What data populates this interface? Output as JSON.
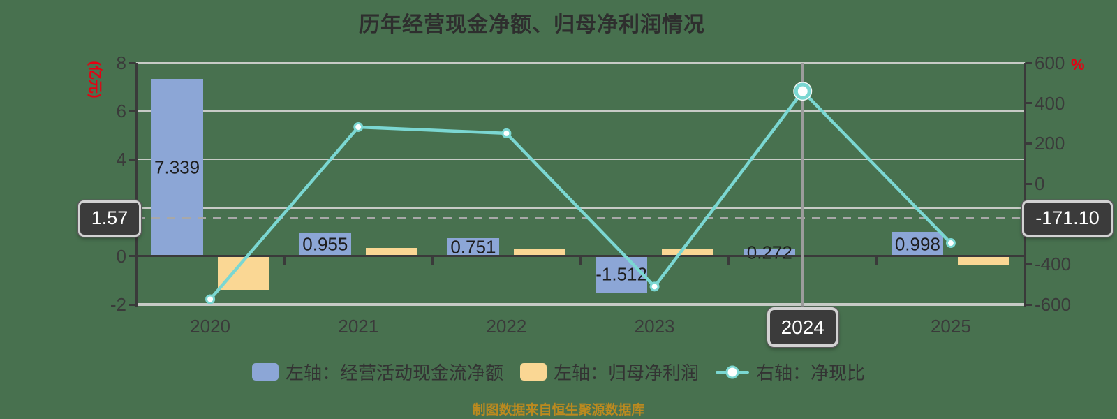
{
  "caption": "制图数据来自恒生聚源数据库",
  "chart_data": {
    "type": "bar",
    "subtype": "combo-bar-line-dual-axis",
    "title": "历年经营现金净额、归母净利润情况",
    "categories": [
      "2020",
      "2021",
      "2022",
      "2023",
      "2024",
      "2025"
    ],
    "series": [
      {
        "name": "左轴：经营活动现金流净额",
        "type": "bar",
        "yaxis": "left",
        "color": "#8CA6D6",
        "values": [
          7.339,
          0.955,
          0.751,
          -1.512,
          0.272,
          0.998
        ],
        "data_labels": [
          "7.339",
          "0.955",
          "0.751",
          "-1.512",
          "0.272",
          "0.998"
        ]
      },
      {
        "name": "左轴：归母净利润",
        "type": "bar",
        "yaxis": "left",
        "color": "#FAD794",
        "values": [
          -1.4,
          0.34,
          0.3,
          0.3,
          0.06,
          -0.34
        ],
        "values_estimated": true
      },
      {
        "name": "右轴：净现比",
        "type": "line",
        "yaxis": "right",
        "color": "#7BD7D2",
        "marker_fill": "#FFFFFF",
        "values": [
          -574,
          281,
          250,
          -511,
          459,
          -295
        ],
        "values_estimated": true,
        "highlighted_category": "2024"
      }
    ],
    "left_axis": {
      "unit": "(亿元)",
      "unit_color": "#E60012",
      "min": -2,
      "max": 8,
      "ticks": [
        "8",
        "6",
        "4",
        "2",
        "0",
        "-2"
      ]
    },
    "right_axis": {
      "unit": "%",
      "unit_color": "#E60012",
      "min": -600,
      "max": 600,
      "ticks": [
        "600",
        "400",
        "200",
        "0",
        "-200",
        "-400",
        "-600"
      ]
    },
    "crosshair": {
      "left_label": "1.57",
      "left_value": 1.57,
      "right_label": "-171.10",
      "x_label": "2024"
    },
    "grid": true,
    "legend_position": "bottom"
  }
}
